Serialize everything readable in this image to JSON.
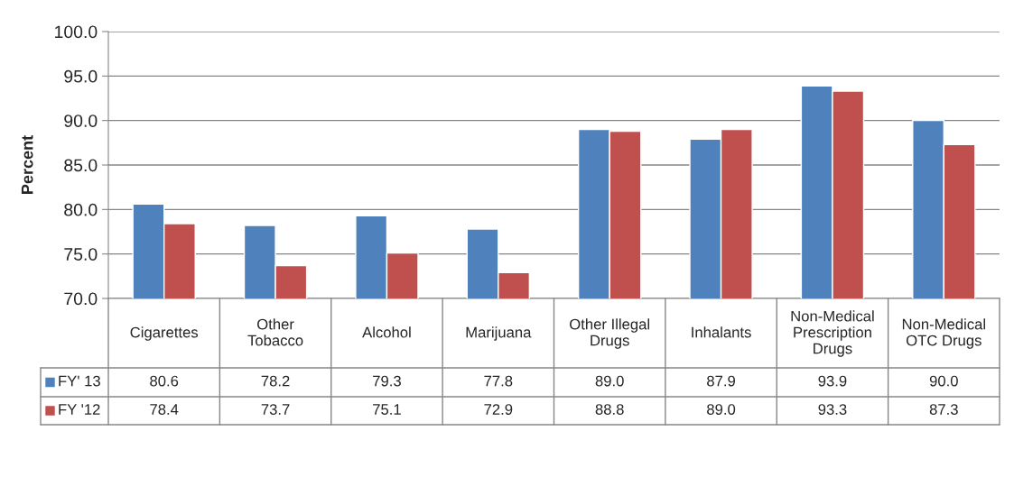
{
  "chart_data": {
    "type": "bar",
    "ylabel": "Percent",
    "categories": [
      "Cigarettes",
      "Other\nTobacco",
      "Alcohol",
      "Marijuana",
      "Other Illegal\nDrugs",
      "Inhalants",
      "Non-Medical\nPrescription\nDrugs",
      "Non-Medical\nOTC Drugs"
    ],
    "series": [
      {
        "name": "FY' 13",
        "color": "#4f81bd",
        "values": [
          80.6,
          78.2,
          79.3,
          77.8,
          89.0,
          87.9,
          93.9,
          90.0
        ],
        "value_labels": [
          "80.6",
          "78.2",
          "79.3",
          "77.8",
          "89.0",
          "87.9",
          "93.9",
          "90.0"
        ]
      },
      {
        "name": "FY '12",
        "color": "#c0504d",
        "values": [
          78.4,
          73.7,
          75.1,
          72.9,
          88.8,
          89.0,
          93.3,
          87.3
        ],
        "value_labels": [
          "78.4",
          "73.7",
          "75.1",
          "72.9",
          "88.8",
          "89.0",
          "93.3",
          "87.3"
        ]
      }
    ],
    "ylim": [
      70,
      100
    ],
    "yticks": [
      {
        "value": 70,
        "label": "70.0"
      },
      {
        "value": 75,
        "label": "75.0"
      },
      {
        "value": 80,
        "label": "80.0"
      },
      {
        "value": 85,
        "label": "85.0"
      },
      {
        "value": 90,
        "label": "90.0"
      },
      {
        "value": 95,
        "label": "95.0"
      },
      {
        "value": 100,
        "label": "100.0"
      }
    ],
    "grid": "y",
    "legend": "bottom"
  }
}
